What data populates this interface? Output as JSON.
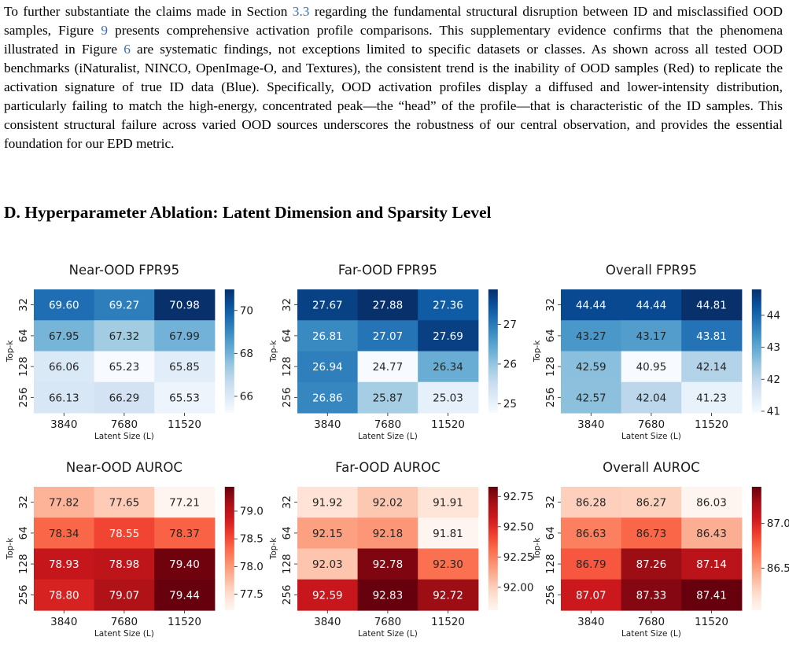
{
  "paragraph": {
    "t1": "To further substantiate the claims made in Section ",
    "ref_section": "3.3",
    "t2": " regarding the fundamental structural disruption between ID and misclassified OOD samples, Figure ",
    "ref_fig9": "9",
    "t3": " presents comprehensive activation profile comparisons. This supplementary evidence confirms that the phenomena illustrated in Figure ",
    "ref_fig6": "6",
    "t4": " are systematic findings, not exceptions limited to specific datasets or classes. As shown across all tested OOD benchmarks (iNaturalist, NINCO, OpenImage-O, and Textures), the consistent trend is the inability of OOD samples (Red) to replicate the activation signature of true ID data (Blue). Specifically, OOD activation profiles display a diffused and lower-intensity distribution, particularly failing to match the high-energy, concentrated peak—the “head” of the profile—that is characteristic of the ID samples. This consistent structural failure across varied OOD sources underscores the robustness of our central observation, and provides the essential foundation for our EPD metric."
  },
  "section_title": "D. Hyperparameter Ablation: Latent Dimension and Sparsity Level",
  "chart_data": [
    {
      "type": "heatmap",
      "title": "Near-OOD FPR95",
      "colormap": "Blues",
      "xlabel": "Latent Size (L)",
      "ylabel": "Top-k",
      "x": [
        "3840",
        "7680",
        "11520"
      ],
      "y": [
        "32",
        "64",
        "128",
        "256"
      ],
      "values": [
        [
          69.6,
          69.27,
          70.98
        ],
        [
          67.95,
          67.32,
          67.99
        ],
        [
          66.06,
          65.23,
          65.85
        ],
        [
          66.13,
          66.29,
          65.53
        ]
      ],
      "labels": [
        [
          "69.60",
          "69.27",
          "70.98"
        ],
        [
          "67.95",
          "67.32",
          "67.99"
        ],
        [
          "66.06",
          "65.23",
          "65.85"
        ],
        [
          "66.13",
          "66.29",
          "65.53"
        ]
      ],
      "vmin": 65.23,
      "vmax": 70.98,
      "colorbar_ticks": [
        66,
        68,
        70
      ],
      "colorbar_tick_labels": [
        "66",
        "68",
        "70"
      ]
    },
    {
      "type": "heatmap",
      "title": "Far-OOD FPR95",
      "colormap": "Blues",
      "xlabel": "Latent Size (L)",
      "ylabel": "Top-k",
      "x": [
        "3840",
        "7680",
        "11520"
      ],
      "y": [
        "32",
        "64",
        "128",
        "256"
      ],
      "values": [
        [
          27.67,
          27.88,
          27.36
        ],
        [
          26.81,
          27.07,
          27.69
        ],
        [
          26.94,
          24.77,
          26.34
        ],
        [
          26.86,
          25.87,
          25.03
        ]
      ],
      "labels": [
        [
          "27.67",
          "27.88",
          "27.36"
        ],
        [
          "26.81",
          "27.07",
          "27.69"
        ],
        [
          "26.94",
          "24.77",
          "26.34"
        ],
        [
          "26.86",
          "25.87",
          "25.03"
        ]
      ],
      "vmin": 24.77,
      "vmax": 27.88,
      "colorbar_ticks": [
        25,
        26,
        27
      ],
      "colorbar_tick_labels": [
        "25",
        "26",
        "27"
      ]
    },
    {
      "type": "heatmap",
      "title": "Overall FPR95",
      "colormap": "Blues",
      "xlabel": "Latent Size (L)",
      "ylabel": "Top-k",
      "x": [
        "3840",
        "7680",
        "11520"
      ],
      "y": [
        "32",
        "64",
        "128",
        "256"
      ],
      "values": [
        [
          44.44,
          44.44,
          44.81
        ],
        [
          43.27,
          43.17,
          43.81
        ],
        [
          42.59,
          40.95,
          42.14
        ],
        [
          42.57,
          42.04,
          41.23
        ]
      ],
      "labels": [
        [
          "44.44",
          "44.44",
          "44.81"
        ],
        [
          "43.27",
          "43.17",
          "43.81"
        ],
        [
          "42.59",
          "40.95",
          "42.14"
        ],
        [
          "42.57",
          "42.04",
          "41.23"
        ]
      ],
      "vmin": 40.95,
      "vmax": 44.81,
      "colorbar_ticks": [
        41,
        42,
        43,
        44
      ],
      "colorbar_tick_labels": [
        "41",
        "42",
        "43",
        "44"
      ]
    },
    {
      "type": "heatmap",
      "title": "Near-OOD AUROC",
      "colormap": "Reds",
      "xlabel": "Latent Size (L)",
      "ylabel": "Top-k",
      "x": [
        "3840",
        "7680",
        "11520"
      ],
      "y": [
        "32",
        "64",
        "128",
        "256"
      ],
      "values": [
        [
          77.82,
          77.65,
          77.21
        ],
        [
          78.34,
          78.55,
          78.37
        ],
        [
          78.93,
          78.98,
          79.4
        ],
        [
          78.8,
          79.07,
          79.44
        ]
      ],
      "labels": [
        [
          "77.82",
          "77.65",
          "77.21"
        ],
        [
          "78.34",
          "78.55",
          "78.37"
        ],
        [
          "78.93",
          "78.98",
          "79.40"
        ],
        [
          "78.80",
          "79.07",
          "79.44"
        ]
      ],
      "vmin": 77.21,
      "vmax": 79.44,
      "colorbar_ticks": [
        77.5,
        78.0,
        78.5,
        79.0
      ],
      "colorbar_tick_labels": [
        "77.5",
        "78.0",
        "78.5",
        "79.0"
      ]
    },
    {
      "type": "heatmap",
      "title": "Far-OOD AUROC",
      "colormap": "Reds",
      "xlabel": "Latent Size (L)",
      "ylabel": "Top-k",
      "x": [
        "3840",
        "7680",
        "11520"
      ],
      "y": [
        "32",
        "64",
        "128",
        "256"
      ],
      "values": [
        [
          91.92,
          92.02,
          91.91
        ],
        [
          92.15,
          92.18,
          91.81
        ],
        [
          92.03,
          92.78,
          92.3
        ],
        [
          92.59,
          92.83,
          92.72
        ]
      ],
      "labels": [
        [
          "91.92",
          "92.02",
          "91.91"
        ],
        [
          "92.15",
          "92.18",
          "91.81"
        ],
        [
          "92.03",
          "92.78",
          "92.30"
        ],
        [
          "92.59",
          "92.83",
          "92.72"
        ]
      ],
      "vmin": 91.81,
      "vmax": 92.83,
      "colorbar_ticks": [
        92.0,
        92.25,
        92.5,
        92.75
      ],
      "colorbar_tick_labels": [
        "92.00",
        "92.25",
        "92.50",
        "92.75"
      ]
    },
    {
      "type": "heatmap",
      "title": "Overall AUROC",
      "colormap": "Reds",
      "xlabel": "Latent Size (L)",
      "ylabel": "Top-k",
      "x": [
        "3840",
        "7680",
        "11520"
      ],
      "y": [
        "32",
        "64",
        "128",
        "256"
      ],
      "values": [
        [
          86.28,
          86.27,
          86.03
        ],
        [
          86.63,
          86.73,
          86.43
        ],
        [
          86.79,
          87.26,
          87.14
        ],
        [
          87.07,
          87.33,
          87.41
        ]
      ],
      "labels": [
        [
          "86.28",
          "86.27",
          "86.03"
        ],
        [
          "86.63",
          "86.73",
          "86.43"
        ],
        [
          "86.79",
          "87.26",
          "87.14"
        ],
        [
          "87.07",
          "87.33",
          "87.41"
        ]
      ],
      "vmin": 86.03,
      "vmax": 87.41,
      "colorbar_ticks": [
        86.5,
        87.0
      ],
      "colorbar_tick_labels": [
        "86.5",
        "87.0"
      ]
    }
  ]
}
